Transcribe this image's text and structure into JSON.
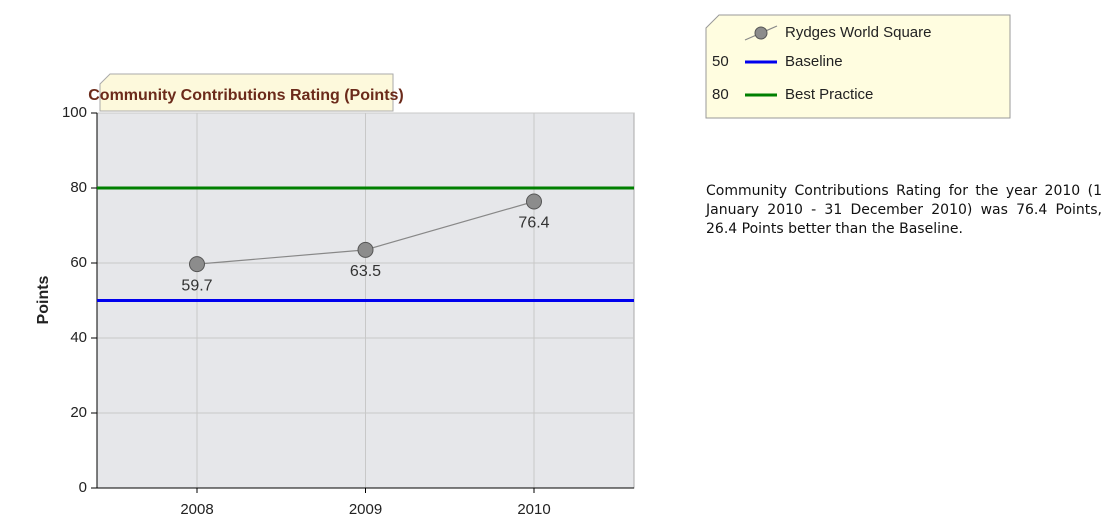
{
  "chart_data": {
    "type": "line",
    "title": "Community Contributions Rating (Points)",
    "y_label": "Points",
    "categories": [
      "2008",
      "2009",
      "2010"
    ],
    "series": [
      {
        "name": "Rydges World Square",
        "color": "#888888",
        "values": [
          59.7,
          63.5,
          76.4
        ]
      }
    ],
    "reference_lines": [
      {
        "name": "Baseline",
        "value": 50,
        "color": "#0000ee"
      },
      {
        "name": "Best Practice",
        "value": 80,
        "color": "#008000"
      }
    ],
    "ylim": [
      0,
      100
    ],
    "yticks": [
      0,
      20,
      40,
      60,
      80,
      100
    ],
    "grid": true
  },
  "description": "Community Contributions Rating for the year 2010 (1 January 2010 - 31 December 2010) was 76.4 Points, 26.4 Points better than the Baseline."
}
